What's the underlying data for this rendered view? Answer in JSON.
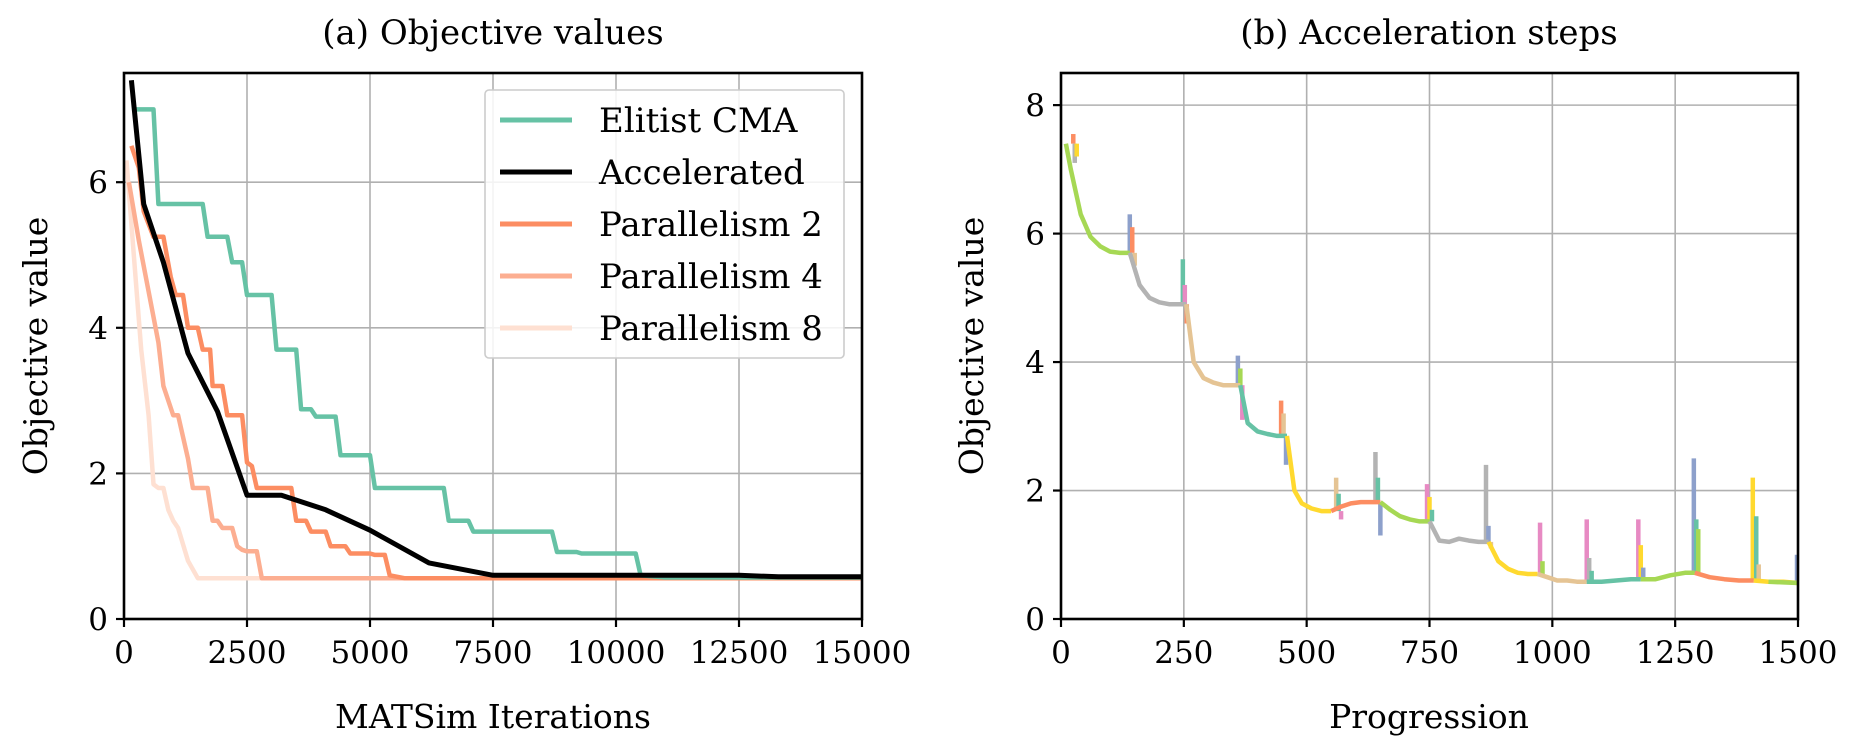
{
  "chart_data": [
    {
      "id": "a",
      "type": "line",
      "title": "(a) Objective values",
      "xlabel": "MATSim Iterations",
      "ylabel": "Objective value",
      "xlim": [
        0,
        15000
      ],
      "ylim": [
        0,
        7.5
      ],
      "xticks": [
        0,
        2500,
        5000,
        7500,
        10000,
        12500,
        15000
      ],
      "yticks": [
        0,
        2,
        4,
        6
      ],
      "grid": true,
      "legend_position": "top-right",
      "series": [
        {
          "name": "Elitist CMA",
          "color": "#66c2a5",
          "x": [
            200,
            600,
            700,
            1600,
            1700,
            2100,
            2200,
            2400,
            2500,
            3000,
            3100,
            3500,
            3600,
            3800,
            3900,
            4300,
            4400,
            4600,
            4700,
            5000,
            5100,
            5300,
            5400,
            6500,
            6600,
            7000,
            7100,
            8700,
            8800,
            9200,
            9300,
            10000,
            10100,
            10400,
            10500,
            11000,
            15000
          ],
          "values": [
            7.0,
            7.0,
            5.7,
            5.7,
            5.25,
            5.25,
            4.9,
            4.9,
            4.45,
            4.45,
            3.7,
            3.7,
            2.88,
            2.88,
            2.78,
            2.78,
            2.25,
            2.25,
            2.25,
            2.25,
            1.8,
            1.8,
            1.8,
            1.8,
            1.35,
            1.35,
            1.2,
            1.2,
            0.92,
            0.92,
            0.9,
            0.9,
            0.9,
            0.9,
            0.6,
            0.57,
            0.57
          ]
        },
        {
          "name": "Accelerated",
          "color": "#000000",
          "x": [
            150,
            400,
            800,
            1300,
            1900,
            2500,
            3200,
            4100,
            5000,
            6200,
            7500,
            10000,
            12500,
            13300,
            15000
          ],
          "values": [
            7.4,
            5.7,
            4.9,
            3.65,
            2.85,
            1.7,
            1.7,
            1.5,
            1.22,
            0.77,
            0.6,
            0.6,
            0.6,
            0.58,
            0.58
          ]
        },
        {
          "name": "Parallelism 2",
          "color": "#fc8d62",
          "x": [
            150,
            300,
            400,
            600,
            800,
            950,
            1050,
            1200,
            1300,
            1500,
            1600,
            1750,
            1800,
            2000,
            2100,
            2400,
            2500,
            2600,
            2700,
            2900,
            3000,
            3400,
            3500,
            3700,
            3800,
            4100,
            4200,
            4500,
            4600,
            5000,
            5100,
            5300,
            5400,
            5700,
            5800,
            15000
          ],
          "values": [
            6.5,
            6.2,
            5.6,
            5.25,
            5.25,
            4.7,
            4.45,
            4.45,
            4.0,
            4.0,
            3.7,
            3.7,
            3.2,
            3.2,
            2.8,
            2.8,
            2.15,
            2.1,
            1.8,
            1.8,
            1.8,
            1.8,
            1.35,
            1.35,
            1.2,
            1.2,
            1.0,
            1.0,
            0.9,
            0.9,
            0.88,
            0.88,
            0.6,
            0.56,
            0.56,
            0.56
          ]
        },
        {
          "name": "Parallelism 4",
          "color": "#fcae91",
          "x": [
            100,
            300,
            500,
            700,
            800,
            1000,
            1100,
            1300,
            1400,
            1700,
            1800,
            1900,
            2000,
            2200,
            2300,
            2400,
            2500,
            2700,
            2800,
            15000
          ],
          "values": [
            6.0,
            5.2,
            4.5,
            3.8,
            3.2,
            2.8,
            2.8,
            2.2,
            1.8,
            1.8,
            1.35,
            1.35,
            1.25,
            1.25,
            1.0,
            0.95,
            0.93,
            0.93,
            0.56,
            0.56
          ]
        },
        {
          "name": "Parallelism 8",
          "color": "#fee0d2",
          "x": [
            50,
            200,
            350,
            500,
            600,
            700,
            800,
            900,
            1000,
            1100,
            1300,
            1500,
            15000
          ],
          "values": [
            6.3,
            5.0,
            3.7,
            2.8,
            1.85,
            1.8,
            1.8,
            1.5,
            1.35,
            1.25,
            0.8,
            0.56,
            0.56
          ]
        }
      ]
    },
    {
      "id": "b",
      "type": "line",
      "title": "(b) Acceleration steps",
      "xlabel": "Progression",
      "ylabel": "Objective value",
      "xlim": [
        0,
        1500
      ],
      "ylim": [
        0,
        8.5
      ],
      "xticks": [
        0,
        250,
        500,
        750,
        1000,
        1250,
        1500
      ],
      "yticks": [
        0,
        2,
        4,
        6,
        8
      ],
      "grid": true,
      "main_path": [
        {
          "color": "#a6d854",
          "x": [
            10,
            20,
            40,
            60,
            80,
            100,
            120,
            140
          ],
          "values": [
            7.4,
            7.0,
            6.3,
            5.95,
            5.8,
            5.72,
            5.7,
            5.7
          ]
        },
        {
          "color": "#b3b3b3",
          "x": [
            140,
            160,
            180,
            200,
            220,
            240,
            255
          ],
          "values": [
            5.7,
            5.2,
            5.0,
            4.93,
            4.9,
            4.9,
            4.9
          ]
        },
        {
          "color": "#e5c494",
          "x": [
            255,
            270,
            290,
            310,
            330,
            350,
            365
          ],
          "values": [
            4.9,
            4.0,
            3.75,
            3.68,
            3.64,
            3.64,
            3.64
          ]
        },
        {
          "color": "#66c2a5",
          "x": [
            365,
            380,
            400,
            420,
            440,
            460
          ],
          "values": [
            3.64,
            3.05,
            2.92,
            2.88,
            2.85,
            2.85
          ]
        },
        {
          "color": "#ffd92f",
          "x": [
            460,
            475,
            490,
            510,
            530,
            550
          ],
          "values": [
            2.85,
            2.0,
            1.8,
            1.72,
            1.68,
            1.68
          ]
        },
        {
          "color": "#fc8d62",
          "x": [
            550,
            570,
            590,
            610,
            630,
            650
          ],
          "values": [
            1.68,
            1.75,
            1.8,
            1.82,
            1.82,
            1.82
          ]
        },
        {
          "color": "#a6d854",
          "x": [
            650,
            670,
            690,
            710,
            730,
            750
          ],
          "values": [
            1.82,
            1.7,
            1.6,
            1.55,
            1.52,
            1.52
          ]
        },
        {
          "color": "#b3b3b3",
          "x": [
            750,
            770,
            790,
            810,
            830,
            850,
            870
          ],
          "values": [
            1.52,
            1.22,
            1.2,
            1.25,
            1.22,
            1.2,
            1.2
          ]
        },
        {
          "color": "#ffd92f",
          "x": [
            870,
            890,
            910,
            930,
            950,
            970
          ],
          "values": [
            1.2,
            0.9,
            0.78,
            0.72,
            0.7,
            0.7
          ]
        },
        {
          "color": "#e5c494",
          "x": [
            970,
            990,
            1010,
            1030,
            1050,
            1070
          ],
          "values": [
            0.7,
            0.65,
            0.6,
            0.6,
            0.58,
            0.58
          ]
        },
        {
          "color": "#66c2a5",
          "x": [
            1070,
            1100,
            1130,
            1160,
            1180
          ],
          "values": [
            0.58,
            0.58,
            0.6,
            0.62,
            0.62
          ]
        },
        {
          "color": "#a6d854",
          "x": [
            1180,
            1210,
            1240,
            1270,
            1290
          ],
          "values": [
            0.62,
            0.62,
            0.68,
            0.72,
            0.72
          ]
        },
        {
          "color": "#fc8d62",
          "x": [
            1290,
            1320,
            1350,
            1380,
            1410
          ],
          "values": [
            0.72,
            0.65,
            0.62,
            0.6,
            0.6
          ]
        },
        {
          "color": "#ffd92f",
          "x": [
            1410,
            1440,
            1470,
            1500
          ],
          "values": [
            0.6,
            0.58,
            0.58,
            0.56
          ]
        },
        {
          "color": "#a6d854",
          "x": [
            1440,
            1470,
            1500
          ],
          "values": [
            0.58,
            0.57,
            0.56
          ]
        }
      ],
      "step_branches": [
        {
          "x": 25,
          "y0": 7.4,
          "y1": 7.55,
          "color": "#fc8d62"
        },
        {
          "x": 28,
          "y0": 7.4,
          "y1": 7.1,
          "color": "#b3b3b3"
        },
        {
          "x": 32,
          "y0": 7.4,
          "y1": 7.2,
          "color": "#ffd92f"
        },
        {
          "x": 140,
          "y0": 5.7,
          "y1": 6.3,
          "color": "#8da0cb"
        },
        {
          "x": 145,
          "y0": 5.7,
          "y1": 6.1,
          "color": "#fc8d62"
        },
        {
          "x": 150,
          "y0": 5.7,
          "y1": 5.5,
          "color": "#e5c494"
        },
        {
          "x": 248,
          "y0": 4.9,
          "y1": 5.6,
          "color": "#66c2a5"
        },
        {
          "x": 252,
          "y0": 4.9,
          "y1": 5.2,
          "color": "#e78ac3"
        },
        {
          "x": 256,
          "y0": 4.9,
          "y1": 4.6,
          "color": "#fc8d62"
        },
        {
          "x": 360,
          "y0": 3.64,
          "y1": 4.1,
          "color": "#8da0cb"
        },
        {
          "x": 365,
          "y0": 3.64,
          "y1": 3.9,
          "color": "#a6d854"
        },
        {
          "x": 369,
          "y0": 3.64,
          "y1": 3.1,
          "color": "#e78ac3"
        },
        {
          "x": 448,
          "y0": 2.85,
          "y1": 3.4,
          "color": "#fc8d62"
        },
        {
          "x": 453,
          "y0": 2.85,
          "y1": 3.2,
          "color": "#e5c494"
        },
        {
          "x": 458,
          "y0": 2.85,
          "y1": 2.4,
          "color": "#8da0cb"
        },
        {
          "x": 560,
          "y0": 1.68,
          "y1": 2.2,
          "color": "#e5c494"
        },
        {
          "x": 565,
          "y0": 1.68,
          "y1": 1.95,
          "color": "#66c2a5"
        },
        {
          "x": 570,
          "y0": 1.68,
          "y1": 1.55,
          "color": "#e78ac3"
        },
        {
          "x": 640,
          "y0": 1.82,
          "y1": 2.6,
          "color": "#b3b3b3"
        },
        {
          "x": 645,
          "y0": 1.82,
          "y1": 2.2,
          "color": "#66c2a5"
        },
        {
          "x": 650,
          "y0": 1.82,
          "y1": 1.3,
          "color": "#8da0cb"
        },
        {
          "x": 745,
          "y0": 1.52,
          "y1": 2.1,
          "color": "#e78ac3"
        },
        {
          "x": 750,
          "y0": 1.52,
          "y1": 1.9,
          "color": "#ffd92f"
        },
        {
          "x": 755,
          "y0": 1.52,
          "y1": 1.7,
          "color": "#66c2a5"
        },
        {
          "x": 865,
          "y0": 1.2,
          "y1": 2.4,
          "color": "#b3b3b3"
        },
        {
          "x": 870,
          "y0": 1.2,
          "y1": 1.45,
          "color": "#8da0cb"
        },
        {
          "x": 875,
          "y0": 1.2,
          "y1": 1.1,
          "color": "#e5c494"
        },
        {
          "x": 975,
          "y0": 0.7,
          "y1": 1.5,
          "color": "#e78ac3"
        },
        {
          "x": 980,
          "y0": 0.7,
          "y1": 0.9,
          "color": "#a6d854"
        },
        {
          "x": 1070,
          "y0": 0.58,
          "y1": 1.55,
          "color": "#e78ac3"
        },
        {
          "x": 1075,
          "y0": 0.58,
          "y1": 0.95,
          "color": "#b3b3b3"
        },
        {
          "x": 1080,
          "y0": 0.58,
          "y1": 0.75,
          "color": "#66c2a5"
        },
        {
          "x": 1175,
          "y0": 0.62,
          "y1": 1.55,
          "color": "#e78ac3"
        },
        {
          "x": 1180,
          "y0": 0.62,
          "y1": 1.15,
          "color": "#ffd92f"
        },
        {
          "x": 1185,
          "y0": 0.62,
          "y1": 0.8,
          "color": "#8da0cb"
        },
        {
          "x": 1288,
          "y0": 0.72,
          "y1": 2.5,
          "color": "#8da0cb"
        },
        {
          "x": 1293,
          "y0": 0.72,
          "y1": 1.55,
          "color": "#66c2a5"
        },
        {
          "x": 1297,
          "y0": 0.72,
          "y1": 1.4,
          "color": "#a6d854"
        },
        {
          "x": 1408,
          "y0": 0.6,
          "y1": 2.2,
          "color": "#ffd92f"
        },
        {
          "x": 1415,
          "y0": 0.6,
          "y1": 1.6,
          "color": "#66c2a5"
        },
        {
          "x": 1420,
          "y0": 0.6,
          "y1": 0.85,
          "color": "#e5c494"
        },
        {
          "x": 1498,
          "y0": 0.56,
          "y1": 1.0,
          "color": "#8da0cb"
        }
      ]
    }
  ]
}
